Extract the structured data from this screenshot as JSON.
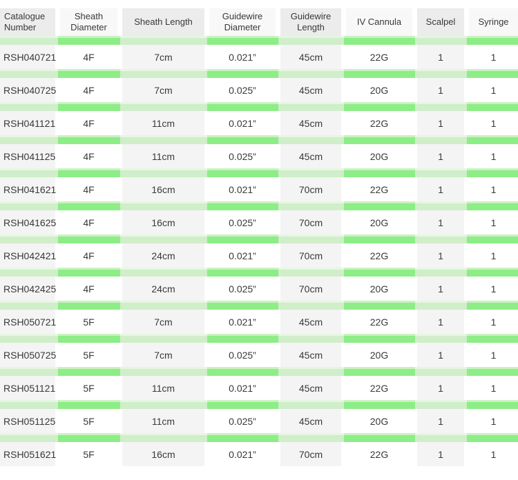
{
  "chart_data": {
    "type": "table",
    "title": "",
    "columns": [
      "Catalogue Number",
      "Sheath Diameter",
      "Sheath Length",
      "Guidewire Diameter",
      "Guidewire Length",
      "IV Cannula",
      "Scalpel",
      "Syringe"
    ],
    "rows": [
      [
        "RSH040721",
        "4F",
        "7cm",
        "0.021”",
        "45cm",
        "22G",
        "1",
        "1"
      ],
      [
        "RSH040725",
        "4F",
        "7cm",
        "0.025”",
        "45cm",
        "20G",
        "1",
        "1"
      ],
      [
        "RSH041121",
        "4F",
        "11cm",
        "0.021”",
        "45cm",
        "22G",
        "1",
        "1"
      ],
      [
        "RSH041125",
        "4F",
        "11cm",
        "0.025”",
        "45cm",
        "20G",
        "1",
        "1"
      ],
      [
        "RSH041621",
        "4F",
        "16cm",
        "0.021”",
        "70cm",
        "22G",
        "1",
        "1"
      ],
      [
        "RSH041625",
        "4F",
        "16cm",
        "0.025”",
        "70cm",
        "20G",
        "1",
        "1"
      ],
      [
        "RSH042421",
        "4F",
        "24cm",
        "0.021”",
        "70cm",
        "22G",
        "1",
        "1"
      ],
      [
        "RSH042425",
        "4F",
        "24cm",
        "0.025”",
        "70cm",
        "20G",
        "1",
        "1"
      ],
      [
        "RSH050721",
        "5F",
        "7cm",
        "0.021”",
        "45cm",
        "22G",
        "1",
        "1"
      ],
      [
        "RSH050725",
        "5F",
        "7cm",
        "0.025”",
        "45cm",
        "20G",
        "1",
        "1"
      ],
      [
        "RSH051121",
        "5F",
        "11cm",
        "0.021”",
        "45cm",
        "22G",
        "1",
        "1"
      ],
      [
        "RSH051125",
        "5F",
        "11cm",
        "0.025”",
        "45cm",
        "20G",
        "1",
        "1"
      ],
      [
        "RSH051621",
        "5F",
        "16cm",
        "0.021”",
        "70cm",
        "22G",
        "1",
        "1"
      ]
    ],
    "layout": {
      "grid": "off",
      "row_separator_style": "checkerboard-green-bands",
      "column_backgrounds": "alternating gray/white"
    },
    "colors": {
      "band_bright_green": "#8ded86",
      "band_pale_green": "#cfeec9",
      "header_odd_bg": "#ececec",
      "header_even_bg": "#f8f8f8",
      "cell_odd_bg": "#f4f4f4",
      "cell_even_bg": "#ffffff",
      "text": "#383838",
      "page_bg": "#ffffff"
    }
  }
}
